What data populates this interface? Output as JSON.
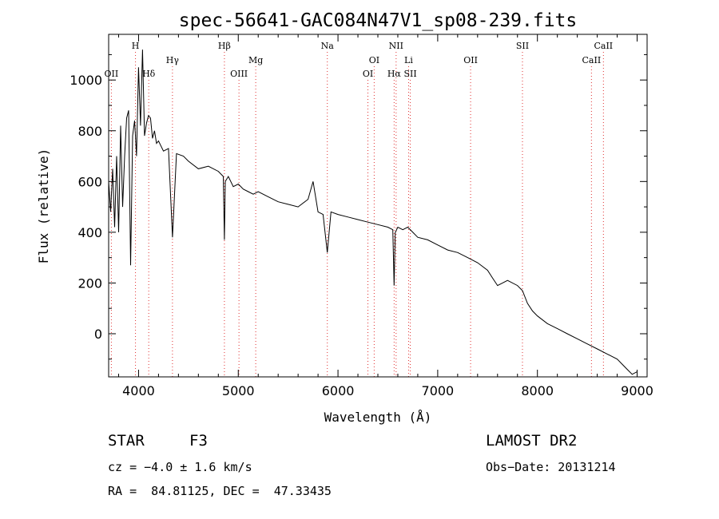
{
  "chart_data": {
    "type": "line",
    "title": "spec-56641-GAC084N47V1_sp08-239.fits",
    "xlabel": "Wavelength (Å)",
    "ylabel": "Flux (relative)",
    "xlim": [
      3700,
      9100
    ],
    "ylim": [
      -170,
      1180
    ],
    "x_ticks": [
      4000,
      5000,
      6000,
      7000,
      8000,
      9000
    ],
    "y_ticks": [
      0,
      200,
      400,
      600,
      800,
      1000
    ],
    "grid": false,
    "legend": "none",
    "spectrum": {
      "x": [
        3700,
        3720,
        3740,
        3760,
        3780,
        3800,
        3820,
        3840,
        3860,
        3880,
        3900,
        3920,
        3940,
        3960,
        3980,
        4000,
        4020,
        4040,
        4060,
        4080,
        4100,
        4120,
        4140,
        4160,
        4180,
        4200,
        4250,
        4300,
        4340,
        4380,
        4450,
        4500,
        4600,
        4700,
        4800,
        4850,
        4861,
        4870,
        4900,
        4950,
        5000,
        5050,
        5100,
        5150,
        5200,
        5300,
        5400,
        5500,
        5600,
        5700,
        5750,
        5800,
        5850,
        5893,
        5930,
        6000,
        6100,
        6200,
        6300,
        6400,
        6500,
        6550,
        6563,
        6575,
        6600,
        6650,
        6700,
        6750,
        6800,
        6900,
        7000,
        7100,
        7200,
        7300,
        7400,
        7500,
        7550,
        7600,
        7650,
        7700,
        7800,
        7850,
        7900,
        7950,
        8000,
        8100,
        8200,
        8300,
        8400,
        8500,
        8600,
        8700,
        8800,
        8850,
        8900,
        8950,
        9000
      ],
      "y": [
        600,
        480,
        650,
        420,
        700,
        400,
        820,
        500,
        700,
        850,
        880,
        270,
        780,
        840,
        700,
        1050,
        820,
        1120,
        780,
        830,
        860,
        850,
        770,
        800,
        750,
        760,
        720,
        730,
        380,
        710,
        700,
        680,
        650,
        660,
        640,
        620,
        370,
        600,
        620,
        580,
        590,
        570,
        560,
        550,
        560,
        540,
        520,
        510,
        500,
        530,
        600,
        480,
        470,
        320,
        480,
        470,
        460,
        450,
        440,
        430,
        420,
        410,
        190,
        400,
        420,
        410,
        420,
        400,
        380,
        370,
        350,
        330,
        320,
        300,
        280,
        250,
        220,
        190,
        200,
        210,
        190,
        170,
        120,
        90,
        70,
        40,
        20,
        0,
        -20,
        -40,
        -60,
        -80,
        -100,
        -120,
        -140,
        -160,
        -150
      ],
      "color": "#000000"
    },
    "spectral_lines": [
      {
        "label": "OII",
        "wavelength": 3727,
        "row": 3
      },
      {
        "label": "H",
        "wavelength": 3969,
        "row": 1
      },
      {
        "label": "Hδ",
        "wavelength": 4102,
        "row": 3
      },
      {
        "label": "Hγ",
        "wavelength": 4340,
        "row": 2
      },
      {
        "label": "Hβ",
        "wavelength": 4861,
        "row": 1
      },
      {
        "label": "OIII",
        "wavelength": 5007,
        "row": 3
      },
      {
        "label": "Mg",
        "wavelength": 5175,
        "row": 2
      },
      {
        "label": "Na",
        "wavelength": 5893,
        "row": 1
      },
      {
        "label": "OI",
        "wavelength": 6300,
        "row": 3
      },
      {
        "label": "OI",
        "wavelength": 6363,
        "row": 2
      },
      {
        "label": "NII",
        "wavelength": 6583,
        "row": 1
      },
      {
        "label": "Hα",
        "wavelength": 6563,
        "row": 3
      },
      {
        "label": "Li",
        "wavelength": 6708,
        "row": 2
      },
      {
        "label": "SII",
        "wavelength": 6725,
        "row": 3
      },
      {
        "label": "OII",
        "wavelength": 7330,
        "row": 2
      },
      {
        "label": "SII",
        "wavelength": 7850,
        "row": 1
      },
      {
        "label": "CaII",
        "wavelength": 8542,
        "row": 2
      },
      {
        "label": "CaII",
        "wavelength": 8662,
        "row": 1
      }
    ],
    "line_marker_color": "#e03030"
  },
  "info": {
    "object_type": "STAR",
    "object_class": "F3",
    "survey": "LAMOST DR2",
    "redshift": "cz = −4.0 ± 1.6 km/s",
    "obs_date": "Obs−Date: 20131214",
    "coordinates": "RA =  84.81125, DEC =  47.33435"
  }
}
